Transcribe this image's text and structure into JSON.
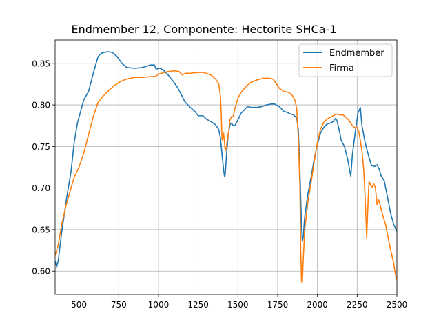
{
  "chart_data": {
    "type": "line",
    "title": "Endmember 12, Componente: Hectorite SHCa-1",
    "xlabel": "",
    "ylabel": "",
    "xlim": [
      350,
      2500
    ],
    "ylim": [
      0.572,
      0.878
    ],
    "x_ticks": [
      500,
      750,
      1000,
      1250,
      1500,
      1750,
      2000,
      2250,
      2500
    ],
    "x_tick_labels": [
      "500",
      "750",
      "1000",
      "1250",
      "1500",
      "1750",
      "2000",
      "2250",
      "2500"
    ],
    "y_ticks": [
      0.6,
      0.65,
      0.7,
      0.75,
      0.8,
      0.85
    ],
    "y_tick_labels": [
      "0.60",
      "0.65",
      "0.70",
      "0.75",
      "0.80",
      "0.85"
    ],
    "grid": true,
    "legend_position": "top-right",
    "series": [
      {
        "name": "Endmember",
        "color": "#1f77b4",
        "points": [
          [
            350,
            0.612
          ],
          [
            360,
            0.605
          ],
          [
            370,
            0.613
          ],
          [
            390,
            0.645
          ],
          [
            420,
            0.685
          ],
          [
            450,
            0.72
          ],
          [
            470,
            0.755
          ],
          [
            490,
            0.778
          ],
          [
            510,
            0.792
          ],
          [
            530,
            0.806
          ],
          [
            560,
            0.816
          ],
          [
            590,
            0.838
          ],
          [
            620,
            0.858
          ],
          [
            640,
            0.862
          ],
          [
            680,
            0.864
          ],
          [
            710,
            0.863
          ],
          [
            740,
            0.858
          ],
          [
            770,
            0.85
          ],
          [
            800,
            0.845
          ],
          [
            850,
            0.844
          ],
          [
            900,
            0.845
          ],
          [
            950,
            0.848
          ],
          [
            975,
            0.848
          ],
          [
            985,
            0.843
          ],
          [
            1010,
            0.844
          ],
          [
            1030,
            0.842
          ],
          [
            1060,
            0.836
          ],
          [
            1090,
            0.829
          ],
          [
            1120,
            0.821
          ],
          [
            1150,
            0.81
          ],
          [
            1165,
            0.804
          ],
          [
            1200,
            0.797
          ],
          [
            1230,
            0.792
          ],
          [
            1250,
            0.787
          ],
          [
            1280,
            0.787
          ],
          [
            1300,
            0.783
          ],
          [
            1330,
            0.78
          ],
          [
            1360,
            0.776
          ],
          [
            1380,
            0.77
          ],
          [
            1390,
            0.76
          ],
          [
            1400,
            0.74
          ],
          [
            1410,
            0.722
          ],
          [
            1415,
            0.714
          ],
          [
            1420,
            0.716
          ],
          [
            1430,
            0.745
          ],
          [
            1440,
            0.766
          ],
          [
            1450,
            0.776
          ],
          [
            1460,
            0.778
          ],
          [
            1470,
            0.775
          ],
          [
            1480,
            0.775
          ],
          [
            1500,
            0.782
          ],
          [
            1520,
            0.79
          ],
          [
            1540,
            0.794
          ],
          [
            1560,
            0.798
          ],
          [
            1580,
            0.797
          ],
          [
            1620,
            0.797
          ],
          [
            1650,
            0.798
          ],
          [
            1680,
            0.8
          ],
          [
            1710,
            0.801
          ],
          [
            1730,
            0.801
          ],
          [
            1760,
            0.798
          ],
          [
            1790,
            0.792
          ],
          [
            1810,
            0.791
          ],
          [
            1830,
            0.789
          ],
          [
            1850,
            0.788
          ],
          [
            1870,
            0.784
          ],
          [
            1880,
            0.77
          ],
          [
            1890,
            0.72
          ],
          [
            1900,
            0.655
          ],
          [
            1905,
            0.636
          ],
          [
            1910,
            0.64
          ],
          [
            1920,
            0.665
          ],
          [
            1940,
            0.693
          ],
          [
            1960,
            0.713
          ],
          [
            1980,
            0.735
          ],
          [
            2000,
            0.753
          ],
          [
            2020,
            0.766
          ],
          [
            2040,
            0.773
          ],
          [
            2060,
            0.777
          ],
          [
            2080,
            0.778
          ],
          [
            2100,
            0.78
          ],
          [
            2115,
            0.784
          ],
          [
            2125,
            0.78
          ],
          [
            2140,
            0.767
          ],
          [
            2150,
            0.757
          ],
          [
            2170,
            0.75
          ],
          [
            2190,
            0.735
          ],
          [
            2210,
            0.714
          ],
          [
            2220,
            0.74
          ],
          [
            2240,
            0.77
          ],
          [
            2255,
            0.79
          ],
          [
            2270,
            0.797
          ],
          [
            2280,
            0.775
          ],
          [
            2300,
            0.755
          ],
          [
            2320,
            0.74
          ],
          [
            2340,
            0.727
          ],
          [
            2360,
            0.726
          ],
          [
            2375,
            0.728
          ],
          [
            2390,
            0.722
          ],
          [
            2400,
            0.715
          ],
          [
            2420,
            0.709
          ],
          [
            2440,
            0.69
          ],
          [
            2460,
            0.67
          ],
          [
            2480,
            0.656
          ],
          [
            2490,
            0.652
          ],
          [
            2500,
            0.648
          ]
        ]
      },
      {
        "name": "Firma",
        "color": "#ff7f0e",
        "points": [
          [
            350,
            0.619
          ],
          [
            370,
            0.632
          ],
          [
            390,
            0.655
          ],
          [
            420,
            0.68
          ],
          [
            450,
            0.7
          ],
          [
            470,
            0.713
          ],
          [
            500,
            0.725
          ],
          [
            530,
            0.742
          ],
          [
            560,
            0.764
          ],
          [
            590,
            0.786
          ],
          [
            620,
            0.803
          ],
          [
            650,
            0.81
          ],
          [
            680,
            0.816
          ],
          [
            720,
            0.823
          ],
          [
            760,
            0.828
          ],
          [
            800,
            0.831
          ],
          [
            850,
            0.833
          ],
          [
            900,
            0.833
          ],
          [
            950,
            0.834
          ],
          [
            980,
            0.834
          ],
          [
            1000,
            0.837
          ],
          [
            1020,
            0.838
          ],
          [
            1060,
            0.84
          ],
          [
            1100,
            0.841
          ],
          [
            1130,
            0.84
          ],
          [
            1150,
            0.836
          ],
          [
            1170,
            0.838
          ],
          [
            1200,
            0.838
          ],
          [
            1250,
            0.839
          ],
          [
            1280,
            0.839
          ],
          [
            1300,
            0.838
          ],
          [
            1330,
            0.836
          ],
          [
            1360,
            0.831
          ],
          [
            1380,
            0.825
          ],
          [
            1390,
            0.81
          ],
          [
            1395,
            0.79
          ],
          [
            1400,
            0.758
          ],
          [
            1405,
            0.76
          ],
          [
            1410,
            0.766
          ],
          [
            1415,
            0.755
          ],
          [
            1420,
            0.745
          ],
          [
            1425,
            0.748
          ],
          [
            1440,
            0.765
          ],
          [
            1450,
            0.782
          ],
          [
            1460,
            0.786
          ],
          [
            1470,
            0.786
          ],
          [
            1480,
            0.795
          ],
          [
            1500,
            0.808
          ],
          [
            1520,
            0.815
          ],
          [
            1550,
            0.822
          ],
          [
            1580,
            0.827
          ],
          [
            1620,
            0.83
          ],
          [
            1660,
            0.832
          ],
          [
            1700,
            0.832
          ],
          [
            1720,
            0.831
          ],
          [
            1740,
            0.826
          ],
          [
            1760,
            0.82
          ],
          [
            1790,
            0.816
          ],
          [
            1820,
            0.815
          ],
          [
            1840,
            0.812
          ],
          [
            1860,
            0.805
          ],
          [
            1870,
            0.795
          ],
          [
            1880,
            0.76
          ],
          [
            1890,
            0.7
          ],
          [
            1895,
            0.625
          ],
          [
            1900,
            0.588
          ],
          [
            1905,
            0.586
          ],
          [
            1910,
            0.61
          ],
          [
            1920,
            0.65
          ],
          [
            1940,
            0.683
          ],
          [
            1960,
            0.706
          ],
          [
            1980,
            0.732
          ],
          [
            2000,
            0.755
          ],
          [
            2020,
            0.771
          ],
          [
            2040,
            0.779
          ],
          [
            2060,
            0.783
          ],
          [
            2080,
            0.785
          ],
          [
            2100,
            0.787
          ],
          [
            2120,
            0.789
          ],
          [
            2140,
            0.788
          ],
          [
            2160,
            0.788
          ],
          [
            2180,
            0.785
          ],
          [
            2200,
            0.781
          ],
          [
            2220,
            0.775
          ],
          [
            2240,
            0.772
          ],
          [
            2250,
            0.773
          ],
          [
            2260,
            0.768
          ],
          [
            2270,
            0.757
          ],
          [
            2280,
            0.745
          ],
          [
            2290,
            0.725
          ],
          [
            2300,
            0.69
          ],
          [
            2310,
            0.64
          ],
          [
            2320,
            0.69
          ],
          [
            2325,
            0.708
          ],
          [
            2335,
            0.703
          ],
          [
            2345,
            0.701
          ],
          [
            2355,
            0.705
          ],
          [
            2365,
            0.7
          ],
          [
            2375,
            0.68
          ],
          [
            2385,
            0.686
          ],
          [
            2395,
            0.679
          ],
          [
            2410,
            0.668
          ],
          [
            2430,
            0.655
          ],
          [
            2450,
            0.635
          ],
          [
            2465,
            0.622
          ],
          [
            2480,
            0.609
          ],
          [
            2490,
            0.597
          ],
          [
            2500,
            0.59
          ]
        ]
      }
    ]
  }
}
